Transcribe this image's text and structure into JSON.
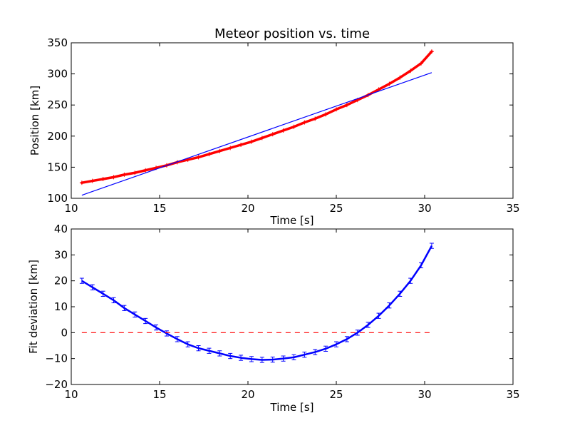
{
  "chart_data": [
    {
      "type": "scatter",
      "title": "Meteor position vs. time",
      "xlabel": "Time [s]",
      "ylabel": "Position [km]",
      "xlim": [
        10,
        35
      ],
      "ylim": [
        100,
        350
      ],
      "xticks": [
        "10",
        "15",
        "20",
        "25",
        "30",
        "35"
      ],
      "yticks": [
        "100",
        "150",
        "200",
        "250",
        "300",
        "350"
      ],
      "grid": false,
      "series": [
        {
          "kind": "points",
          "color": "#ff0000",
          "marker": "plus",
          "x": [
            10.6,
            11.2,
            11.8,
            12.4,
            13.0,
            13.6,
            14.2,
            14.8,
            15.4,
            16.0,
            16.6,
            17.2,
            17.8,
            18.4,
            19.0,
            19.6,
            20.2,
            20.8,
            21.4,
            22.0,
            22.6,
            23.2,
            23.8,
            24.4,
            25.0,
            25.6,
            26.2,
            26.8,
            27.4,
            28.0,
            28.6,
            29.2,
            29.8,
            30.4
          ],
          "y": [
            125,
            128,
            131,
            134,
            138,
            141,
            145,
            149,
            153,
            158,
            162,
            166,
            171,
            176,
            181,
            186,
            191,
            197,
            203,
            209,
            215,
            222,
            228,
            235,
            243,
            250,
            258,
            266,
            275,
            284,
            294,
            305,
            317,
            336
          ]
        },
        {
          "kind": "line",
          "color": "#0000ff",
          "x": [
            10.6,
            30.4
          ],
          "y": [
            105,
            302
          ]
        }
      ]
    },
    {
      "type": "scatter",
      "title": "",
      "xlabel": "Time [s]",
      "ylabel": "Fit deviation [km]",
      "xlim": [
        10,
        35
      ],
      "ylim": [
        -20,
        40
      ],
      "xticks": [
        "10",
        "15",
        "20",
        "25",
        "30",
        "35"
      ],
      "yticks": [
        "−20",
        "−10",
        "0",
        "10",
        "20",
        "30",
        "40"
      ],
      "grid": false,
      "series": [
        {
          "kind": "errorbar",
          "color": "#0000ff",
          "x": [
            10.6,
            11.2,
            11.8,
            12.4,
            13.0,
            13.6,
            14.2,
            14.8,
            15.4,
            16.0,
            16.6,
            17.2,
            17.8,
            18.4,
            19.0,
            19.6,
            20.2,
            20.8,
            21.4,
            22.0,
            22.6,
            23.2,
            23.8,
            24.4,
            25.0,
            25.6,
            26.2,
            26.8,
            27.4,
            28.0,
            28.6,
            29.2,
            29.8,
            30.4
          ],
          "y": [
            20,
            17.5,
            15,
            12.5,
            9.5,
            7,
            4.5,
            2,
            -0.3,
            -2.5,
            -4.5,
            -6,
            -7,
            -8,
            -9,
            -9.7,
            -10.2,
            -10.5,
            -10.4,
            -10.0,
            -9.5,
            -8.5,
            -7.5,
            -6.2,
            -4.5,
            -2.5,
            0,
            3,
            6.5,
            10.5,
            15,
            20,
            26,
            33.5
          ],
          "err": [
            1,
            1,
            1,
            1,
            1,
            1,
            1,
            1,
            1,
            1,
            1,
            1,
            1,
            1,
            1,
            1,
            1,
            1,
            1,
            1,
            1,
            1,
            1,
            1,
            1,
            1,
            1,
            1,
            1,
            1,
            1,
            1,
            1,
            1
          ]
        },
        {
          "kind": "dashed-line",
          "color": "#ff0000",
          "x": [
            10.6,
            30.4
          ],
          "y": [
            0,
            0
          ]
        }
      ]
    }
  ]
}
